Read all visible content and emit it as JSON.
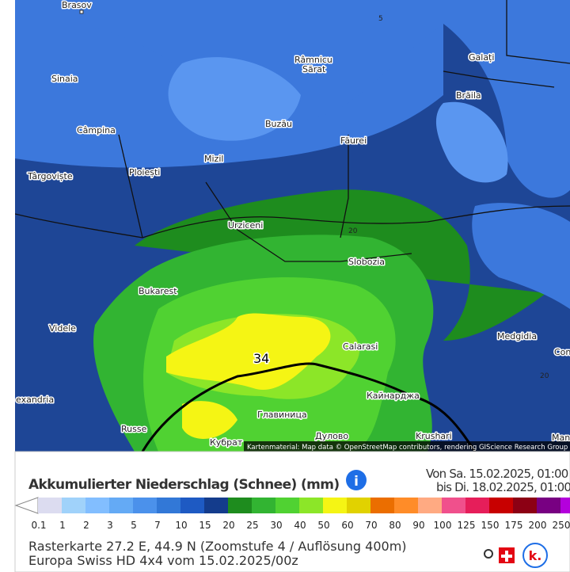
{
  "map": {
    "places": [
      "Brasov",
      "Sinaia",
      "Câmpina",
      "Târgoviște",
      "Ploiești",
      "Râmnicu",
      "Sărat",
      "Buzău",
      "Mizil",
      "Făurei",
      "Galați",
      "Brăila",
      "Urziceni",
      "Slobozia",
      "Bukarest",
      "Videle",
      "Calarasi",
      "Medgidia",
      "Con",
      "exandria",
      "Russe",
      "Главиница",
      "Кайнарджа",
      "Кубрат",
      "Дулово",
      "Krushari",
      "Mang"
    ],
    "max_label": "34",
    "contour_labels": [
      "20",
      "20",
      "5"
    ],
    "attribution": "Kartenmaterial: Map data © OpenStreetMap contributors, rendering GIScience Research Group"
  },
  "panel": {
    "title": "Akkumulierter Niederschlag (Schnee) (mm)",
    "from": "Von Sa. 15.02.2025, 01:00",
    "to": "bis Di. 18.02.2025, 01:00",
    "legend": {
      "labels": [
        "0.1",
        "1",
        "2",
        "3",
        "5",
        "7",
        "10",
        "15",
        "20",
        "25",
        "30",
        "40",
        "50",
        "60",
        "70",
        "80",
        "90",
        "100",
        "125",
        "150",
        "175",
        "200",
        "250"
      ],
      "colors": [
        "#dcdcf0",
        "#a0d2fa",
        "#82beff",
        "#64aaf5",
        "#4b91eb",
        "#3278d7",
        "#1e5ac3",
        "#143c8c",
        "#1e8c1e",
        "#32b432",
        "#50d232",
        "#8ce628",
        "#f5f514",
        "#e1d200",
        "#eb6e00",
        "#ff8c28",
        "#ffaa82",
        "#f0508c",
        "#e61e5a",
        "#c80000",
        "#8c0014",
        "#780082",
        "#b400dc",
        "#dc78ff"
      ]
    },
    "footer1": "Rasterkarte 27.2 E, 44.9 N (Zoomstufe 4 / Auflösung 400m)",
    "footer2": "Europa Swiss HD 4x4 vom 15.02.2025/00z"
  }
}
